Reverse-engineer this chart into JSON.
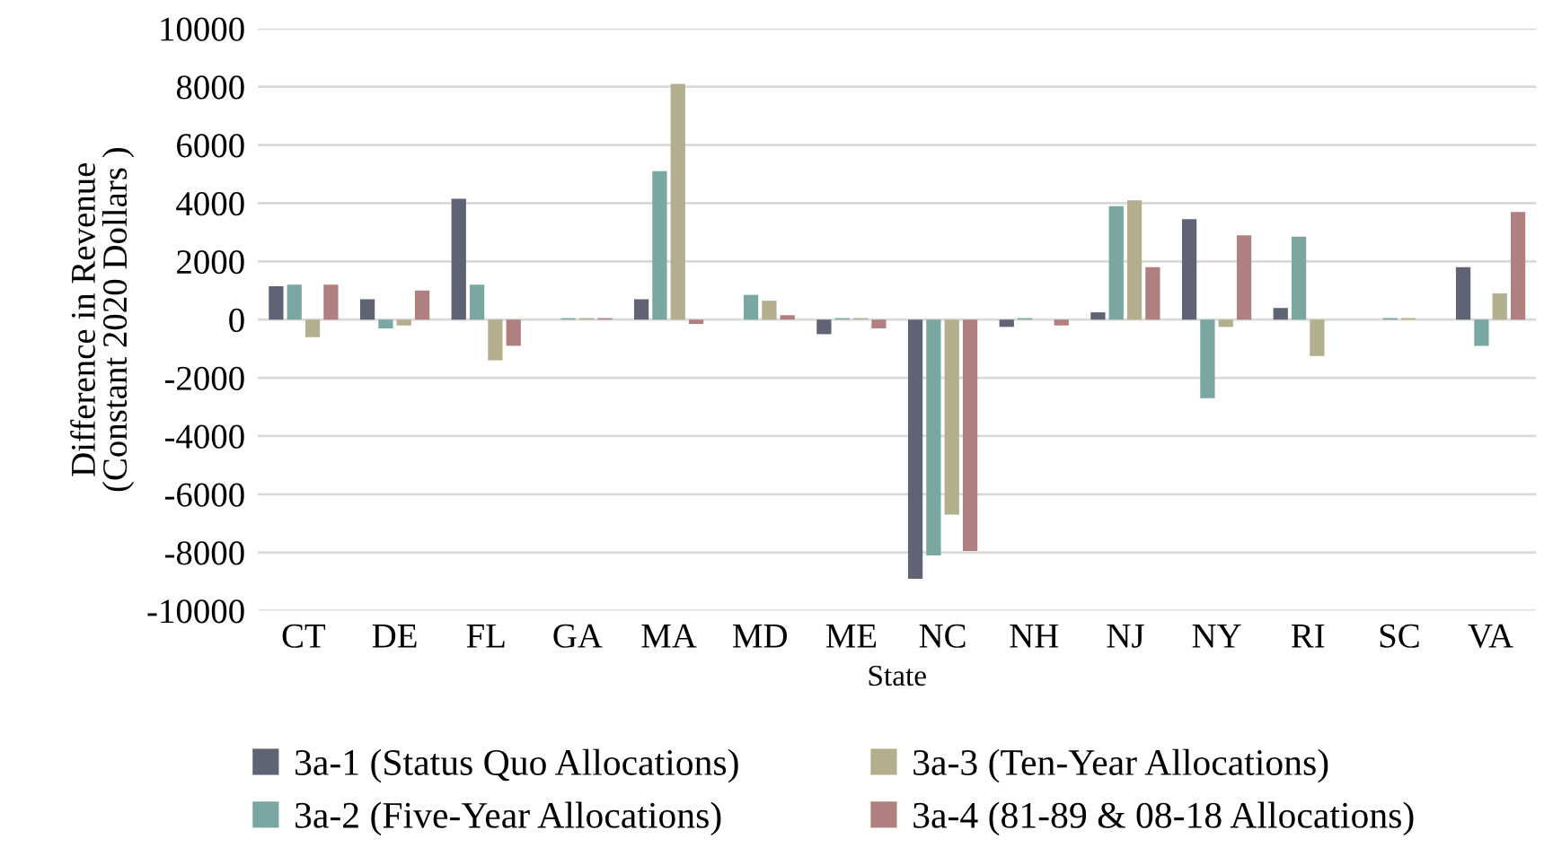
{
  "chart_data": {
    "type": "bar",
    "xlabel": "State",
    "ylabel": "Difference in Revenue\n(Constant 2020 Dollars )",
    "categories": [
      "CT",
      "DE",
      "FL",
      "GA",
      "MA",
      "MD",
      "ME",
      "NC",
      "NH",
      "NJ",
      "NY",
      "RI",
      "SC",
      "VA"
    ],
    "series": [
      {
        "name": "3a-1 (Status Quo Allocations)",
        "color": "#5f6374",
        "values": [
          1150,
          700,
          4150,
          0,
          700,
          0,
          -500,
          -8900,
          -250,
          250,
          3450,
          400,
          0,
          1800
        ]
      },
      {
        "name": "3a-2 (Five-Year Allocations)",
        "color": "#7aa7a1",
        "values": [
          1200,
          -300,
          1200,
          50,
          5100,
          850,
          50,
          -8100,
          50,
          3900,
          -2700,
          2850,
          50,
          -900
        ]
      },
      {
        "name": "3a-3 (Ten-Year Allocations)",
        "color": "#b3ae8d",
        "values": [
          -600,
          -200,
          -1400,
          50,
          8100,
          650,
          50,
          -6700,
          0,
          4100,
          -250,
          -1250,
          50,
          900
        ]
      },
      {
        "name": "3a-4 (81-89 & 08-18 Allocations)",
        "color": "#b07f80",
        "values": [
          1200,
          1000,
          -900,
          50,
          -150,
          150,
          -300,
          -7950,
          -200,
          1800,
          2900,
          0,
          0,
          3700
        ]
      }
    ],
    "ylim": [
      -10000,
      10000
    ],
    "yticks": [
      -10000,
      -8000,
      -6000,
      -4000,
      -2000,
      0,
      2000,
      4000,
      6000,
      8000,
      10000
    ],
    "grid": "y",
    "legend": "bottom"
  }
}
